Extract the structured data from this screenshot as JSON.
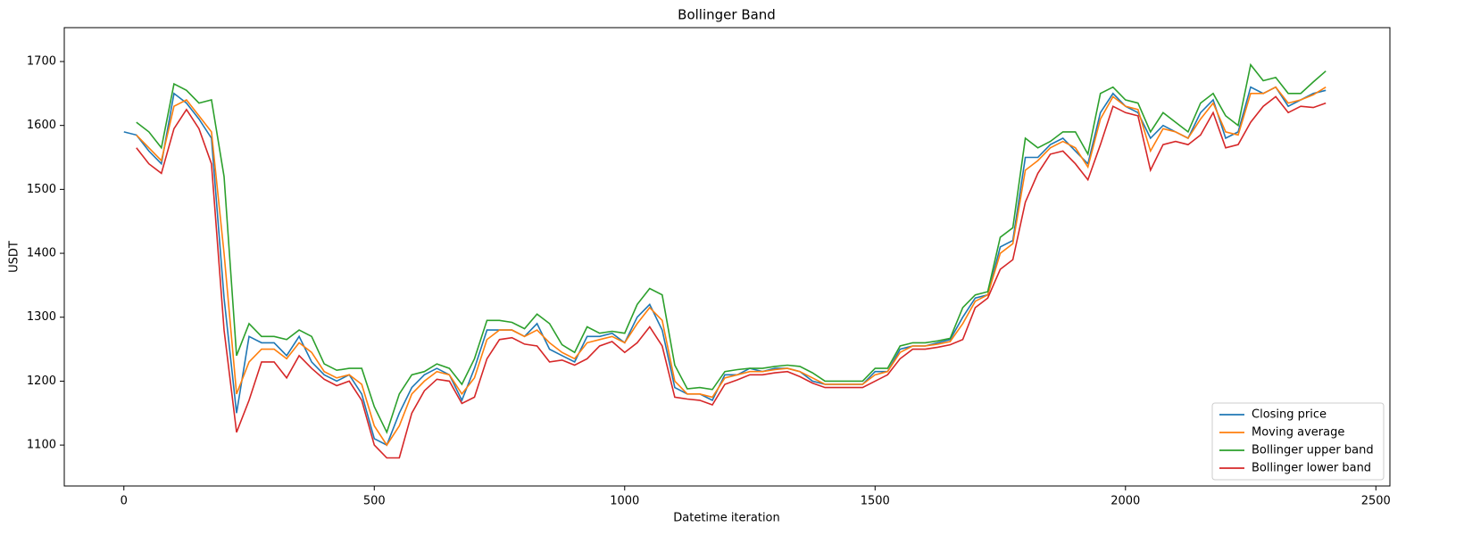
{
  "chart_data": {
    "type": "line",
    "title": "Bollinger Band",
    "xlabel": "Datetime iteration",
    "ylabel": "USDT",
    "x": [
      0,
      25,
      50,
      75,
      100,
      125,
      150,
      175,
      200,
      225,
      250,
      275,
      300,
      325,
      350,
      375,
      400,
      425,
      450,
      475,
      500,
      525,
      550,
      575,
      600,
      625,
      650,
      675,
      700,
      725,
      750,
      775,
      800,
      825,
      850,
      875,
      900,
      925,
      950,
      975,
      1000,
      1025,
      1050,
      1075,
      1100,
      1125,
      1150,
      1175,
      1200,
      1225,
      1250,
      1275,
      1300,
      1325,
      1350,
      1375,
      1400,
      1425,
      1450,
      1475,
      1500,
      1525,
      1550,
      1575,
      1600,
      1625,
      1650,
      1675,
      1700,
      1725,
      1750,
      1775,
      1800,
      1825,
      1850,
      1875,
      1900,
      1925,
      1950,
      1975,
      2000,
      2025,
      2050,
      2075,
      2100,
      2125,
      2150,
      2175,
      2200,
      2225,
      2250,
      2275,
      2300,
      2325,
      2350,
      2375,
      2400
    ],
    "series": [
      {
        "name": "Closing price",
        "color": "#1f77b4",
        "values": [
          1590,
          1585,
          1560,
          1540,
          1650,
          1635,
          1610,
          1580,
          1330,
          1150,
          1270,
          1260,
          1260,
          1240,
          1270,
          1230,
          1210,
          1200,
          1210,
          1180,
          1110,
          1100,
          1150,
          1190,
          1210,
          1220,
          1210,
          1170,
          1220,
          1280,
          1280,
          1280,
          1270,
          1290,
          1250,
          1240,
          1230,
          1270,
          1270,
          1275,
          1260,
          1300,
          1320,
          1280,
          1190,
          1180,
          1180,
          1170,
          1210,
          1210,
          1220,
          1215,
          1220,
          1220,
          1215,
          1200,
          1195,
          1195,
          1195,
          1195,
          1215,
          1215,
          1250,
          1255,
          1255,
          1260,
          1265,
          1300,
          1330,
          1335,
          1410,
          1420,
          1550,
          1550,
          1570,
          1580,
          1560,
          1540,
          1620,
          1650,
          1630,
          1620,
          1580,
          1600,
          1590,
          1580,
          1620,
          1640,
          1580,
          1590,
          1660,
          1650,
          1660,
          1630,
          1640,
          1650,
          1655
        ]
      },
      {
        "name": "Moving average",
        "color": "#ff7f0e",
        "values": [
          null,
          1585,
          1565,
          1545,
          1630,
          1640,
          1615,
          1590,
          1400,
          1180,
          1230,
          1250,
          1250,
          1235,
          1260,
          1245,
          1215,
          1205,
          1210,
          1195,
          1130,
          1100,
          1130,
          1180,
          1200,
          1215,
          1210,
          1180,
          1205,
          1265,
          1280,
          1280,
          1270,
          1280,
          1260,
          1245,
          1235,
          1260,
          1265,
          1270,
          1260,
          1290,
          1315,
          1295,
          1200,
          1180,
          1180,
          1175,
          1205,
          1210,
          1215,
          1215,
          1218,
          1220,
          1215,
          1205,
          1195,
          1195,
          1195,
          1195,
          1210,
          1215,
          1245,
          1255,
          1255,
          1258,
          1262,
          1290,
          1325,
          1335,
          1400,
          1415,
          1530,
          1545,
          1565,
          1575,
          1565,
          1535,
          1610,
          1645,
          1630,
          1625,
          1560,
          1595,
          1590,
          1580,
          1610,
          1635,
          1590,
          1585,
          1650,
          1650,
          1660,
          1635,
          1640,
          1648,
          1660
        ]
      },
      {
        "name": "Bollinger upper band",
        "color": "#2ca02c",
        "values": [
          null,
          1605,
          1590,
          1565,
          1665,
          1655,
          1635,
          1640,
          1520,
          1240,
          1290,
          1270,
          1270,
          1265,
          1280,
          1270,
          1227,
          1217,
          1220,
          1220,
          1160,
          1120,
          1180,
          1210,
          1215,
          1227,
          1220,
          1195,
          1235,
          1295,
          1295,
          1292,
          1282,
          1305,
          1290,
          1257,
          1245,
          1285,
          1275,
          1278,
          1275,
          1320,
          1345,
          1335,
          1225,
          1188,
          1190,
          1187,
          1215,
          1218,
          1220,
          1220,
          1223,
          1225,
          1223,
          1213,
          1200,
          1200,
          1200,
          1200,
          1220,
          1220,
          1255,
          1260,
          1260,
          1263,
          1267,
          1315,
          1335,
          1340,
          1425,
          1440,
          1580,
          1565,
          1575,
          1590,
          1590,
          1555,
          1650,
          1660,
          1640,
          1635,
          1590,
          1620,
          1605,
          1590,
          1635,
          1650,
          1615,
          1600,
          1695,
          1670,
          1675,
          1650,
          1650,
          1668,
          1685
        ]
      },
      {
        "name": "Bollinger lower band",
        "color": "#d62728",
        "values": [
          null,
          1565,
          1540,
          1525,
          1595,
          1625,
          1595,
          1540,
          1280,
          1120,
          1170,
          1230,
          1230,
          1205,
          1240,
          1220,
          1203,
          1193,
          1200,
          1170,
          1100,
          1080,
          1080,
          1150,
          1185,
          1203,
          1200,
          1165,
          1175,
          1235,
          1265,
          1268,
          1258,
          1255,
          1230,
          1233,
          1225,
          1235,
          1255,
          1262,
          1245,
          1260,
          1285,
          1255,
          1175,
          1172,
          1170,
          1163,
          1195,
          1202,
          1210,
          1210,
          1213,
          1215,
          1207,
          1197,
          1190,
          1190,
          1190,
          1190,
          1200,
          1210,
          1235,
          1250,
          1250,
          1253,
          1257,
          1265,
          1315,
          1330,
          1375,
          1390,
          1480,
          1525,
          1555,
          1560,
          1540,
          1515,
          1570,
          1630,
          1620,
          1615,
          1530,
          1570,
          1575,
          1570,
          1585,
          1620,
          1565,
          1570,
          1605,
          1630,
          1645,
          1620,
          1630,
          1628,
          1635
        ]
      }
    ],
    "xlim": [
      -119,
      2528
    ],
    "ylim": [
      1036,
      1753
    ],
    "xticks": [
      0,
      500,
      1000,
      1500,
      2000,
      2500
    ],
    "yticks": [
      1100,
      1200,
      1300,
      1400,
      1500,
      1600,
      1700
    ],
    "legend": "lower right"
  }
}
